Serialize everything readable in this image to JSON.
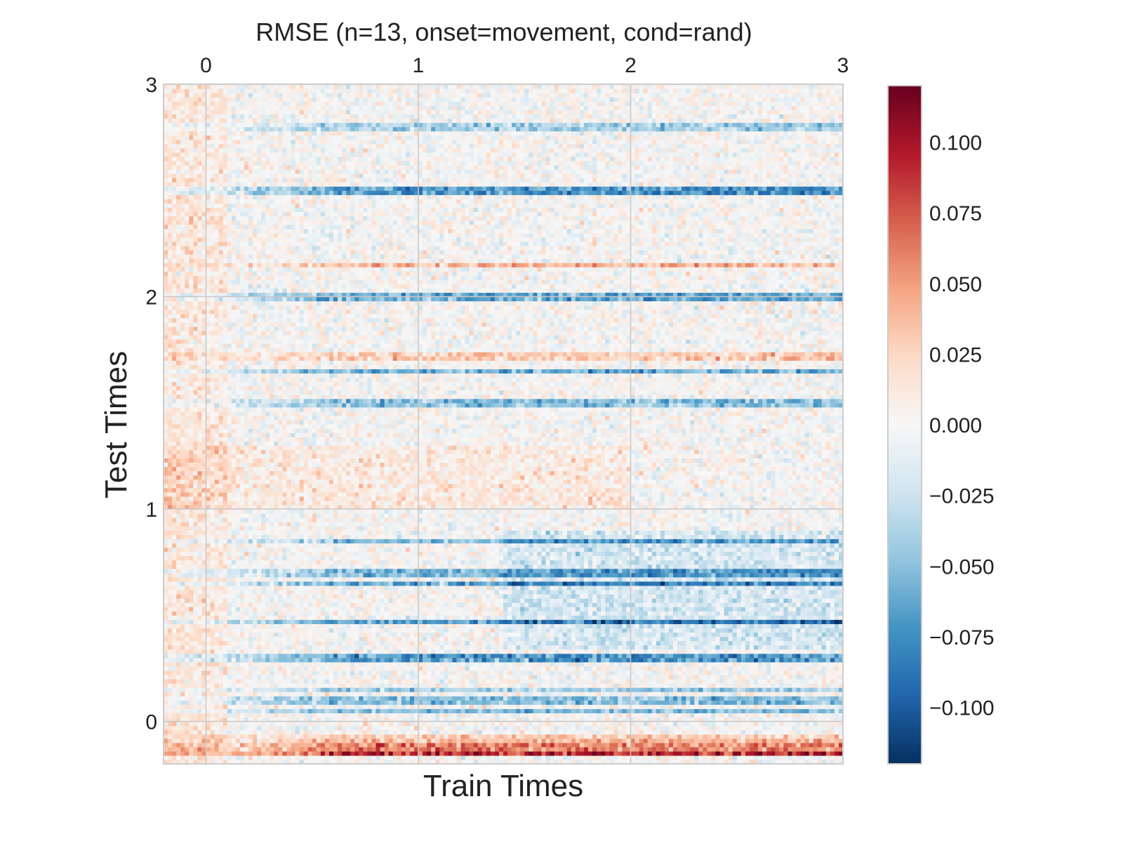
{
  "chart_data": {
    "type": "heatmap",
    "title": "RMSE (n=13, onset=movement, cond=rand)",
    "xlabel": "Train Times",
    "ylabel": "Test Times",
    "x_axis_position": "top",
    "xlim": [
      -0.2,
      3.0
    ],
    "ylim": [
      -0.2,
      3.0
    ],
    "xticks": [
      0,
      1,
      2,
      3
    ],
    "xtick_labels": [
      "0",
      "1",
      "2",
      "3"
    ],
    "yticks": [
      0,
      1,
      2,
      3
    ],
    "ytick_labels": [
      "0",
      "1",
      "2",
      "3"
    ],
    "grid": true,
    "colormap": "RdBu_r",
    "vmin": -0.12,
    "vmax": 0.12,
    "colorbar": {
      "ticks": [
        0.1,
        0.075,
        0.05,
        0.025,
        0.0,
        -0.025,
        -0.05,
        -0.075,
        -0.1
      ],
      "tick_labels": [
        "0.100",
        "0.075",
        "0.050",
        "0.025",
        "0.000",
        "−0.025",
        "−0.050",
        "−0.075",
        "−0.100"
      ]
    },
    "grid_size": {
      "train_bins": 160,
      "test_bins": 160
    },
    "strong_rows": [
      {
        "test_time": -0.15,
        "value": 0.09
      },
      {
        "test_time": -0.12,
        "value": 0.06
      },
      {
        "test_time": -0.09,
        "value": 0.04
      },
      {
        "test_time": -0.07,
        "value": 0.03
      },
      {
        "test_time": 0.05,
        "value": -0.05
      },
      {
        "test_time": 0.1,
        "value": -0.05
      },
      {
        "test_time": 0.15,
        "value": -0.04
      },
      {
        "test_time": 0.3,
        "value": -0.07
      },
      {
        "test_time": 0.47,
        "value": -0.07
      },
      {
        "test_time": 0.65,
        "value": -0.06
      },
      {
        "test_time": 0.7,
        "value": -0.05
      },
      {
        "test_time": 0.85,
        "value": -0.05
      },
      {
        "test_time": 1.65,
        "value": -0.06
      },
      {
        "test_time": 1.5,
        "value": -0.05
      },
      {
        "test_time": 2.0,
        "value": -0.06
      },
      {
        "test_time": 2.5,
        "value": -0.07
      },
      {
        "test_time": 2.8,
        "value": -0.04
      },
      {
        "test_time": 2.15,
        "value": 0.04
      },
      {
        "test_time": 1.72,
        "value": 0.03
      }
    ],
    "band_values_at_column_0": {
      "description_free": true,
      "x_range": [
        -0.2,
        0.0
      ],
      "value": 0.025
    }
  }
}
